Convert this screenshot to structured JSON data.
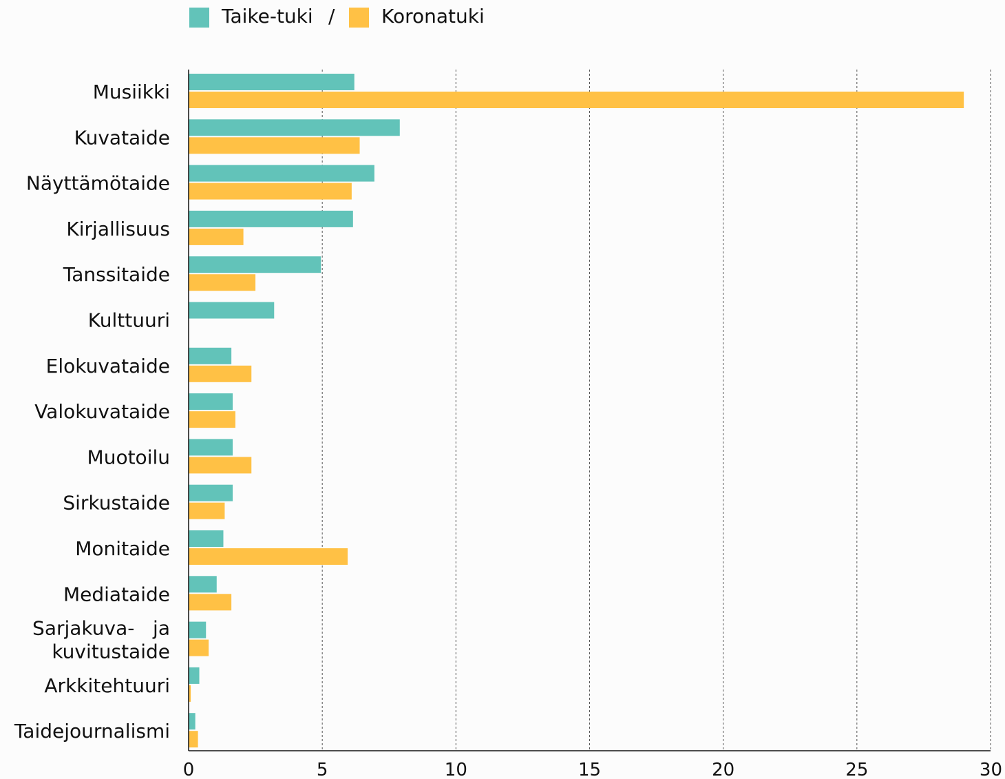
{
  "chart_data": {
    "type": "bar",
    "orientation": "horizontal",
    "legend": {
      "placement": "top",
      "items": [
        "Taike-tuki",
        "Koronatuki"
      ],
      "separator": "/"
    },
    "categories": [
      "Musiikki",
      "Kuvataide",
      "Näyttämötaide",
      "Kirjallisuus",
      "Tanssitaide",
      "Kulttuuri",
      "Elokuvataide",
      "Valokuvataide",
      "Muotoilu",
      "Sirkustaide",
      "Monitaide",
      "Mediataide",
      "Sarjakuva- ja kuvitustaide",
      "Arkkitehtuuri",
      "Taidejournalismi"
    ],
    "category_lines": [
      [
        "Musiikki"
      ],
      [
        "Kuvataide"
      ],
      [
        "Näyttämötaide"
      ],
      [
        "Kirjallisuus"
      ],
      [
        "Tanssitaide"
      ],
      [
        "Kulttuuri"
      ],
      [
        "Elokuvataide"
      ],
      [
        "Valokuvataide"
      ],
      [
        "Muotoilu"
      ],
      [
        "Sirkustaide"
      ],
      [
        "Monitaide"
      ],
      [
        "Mediataide"
      ],
      [
        "Sarjakuva-   ja",
        "kuvitustaide"
      ],
      [
        "Arkkitehtuuri"
      ],
      [
        "Taidejournalismi"
      ]
    ],
    "series": [
      {
        "name": "Taike-tuki",
        "color": "#62c3b9",
        "values": [
          6.2,
          7.9,
          6.95,
          6.15,
          4.95,
          3.2,
          1.6,
          1.65,
          1.65,
          1.65,
          1.3,
          1.05,
          0.65,
          0.4,
          0.25
        ]
      },
      {
        "name": "Koronatuki",
        "color": "#ffc145",
        "values": [
          29.0,
          6.4,
          6.1,
          2.05,
          2.5,
          0,
          2.35,
          1.75,
          2.35,
          1.35,
          5.95,
          1.6,
          0.75,
          0.08,
          0.35
        ]
      }
    ],
    "xlim": [
      0,
      30
    ],
    "xticks": [
      "0",
      "5",
      "10",
      "15",
      "20",
      "25",
      "30"
    ],
    "xtick_values": [
      0,
      5,
      10,
      15,
      20,
      25,
      30
    ],
    "grid": "vertical dashed",
    "xlabel": "",
    "ylabel": "",
    "title": ""
  }
}
